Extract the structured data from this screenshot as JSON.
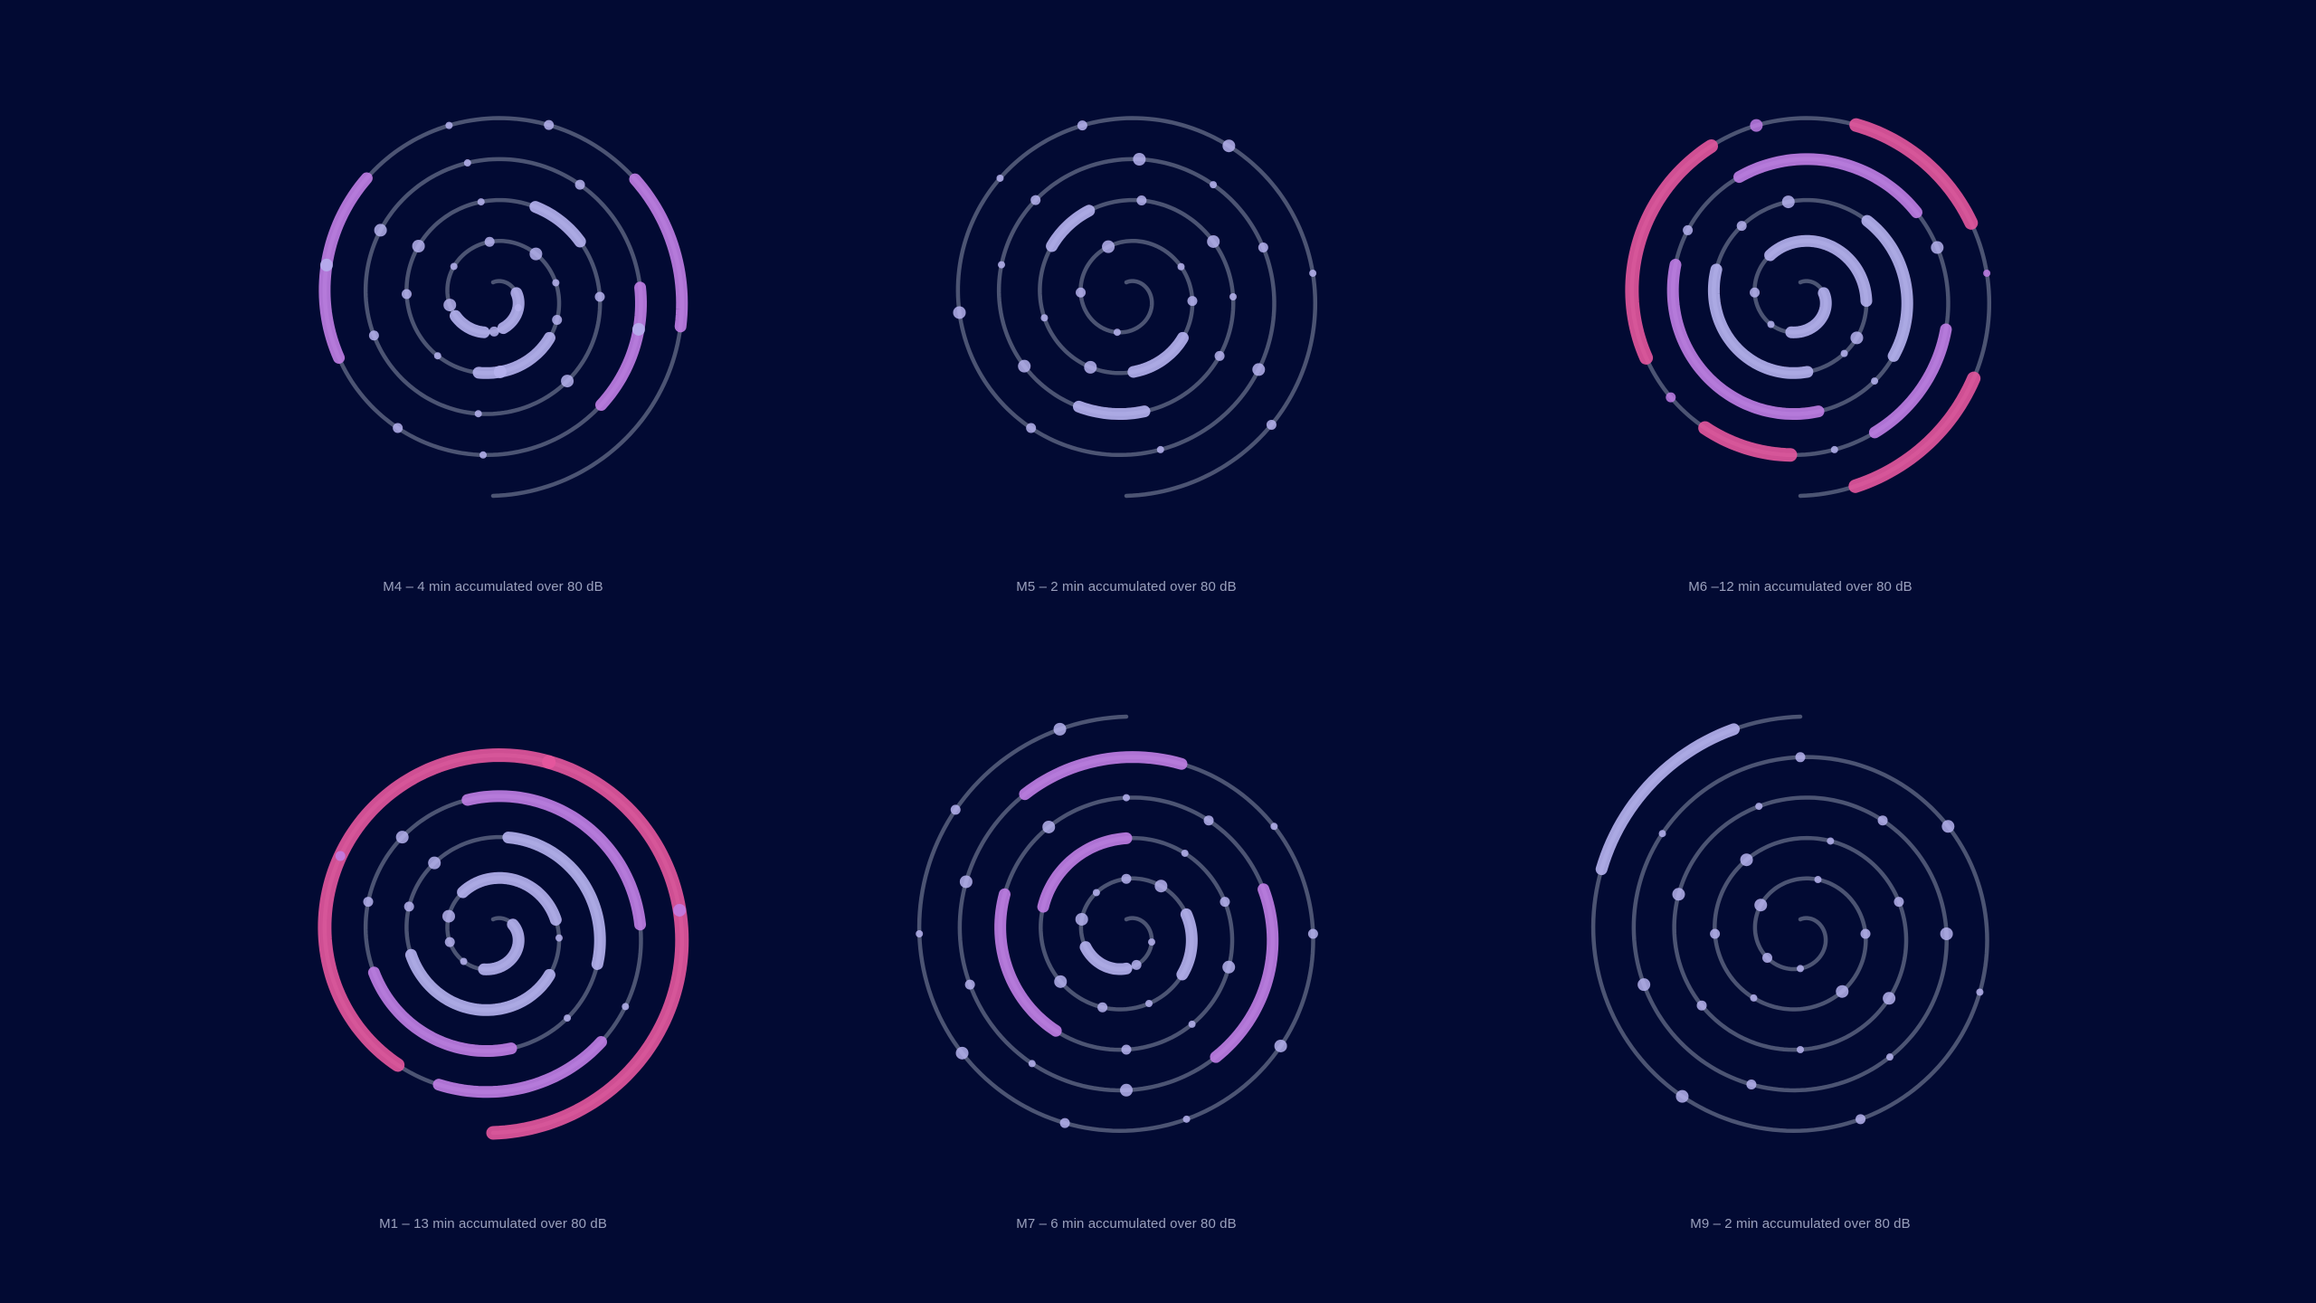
{
  "colors": {
    "background": "#020a33",
    "track": "#59627f",
    "low_level": "#b6b3ef",
    "mid_level": "#c17ee6",
    "high_level": "#e5569d",
    "caption": "#9aa0bd"
  },
  "chart_data": [
    {
      "type": "spiral",
      "caption": "M4 – 4 min accumulated over 80 dB",
      "turns": 4.5,
      "accumulated_minutes_over_80db": 4,
      "segments": [
        {
          "from": 0.05,
          "to": 0.1,
          "level": "low"
        },
        {
          "from": 0.12,
          "to": 0.15,
          "level": "low"
        },
        {
          "from": 0.3,
          "to": 0.34,
          "level": "low"
        },
        {
          "from": 0.46,
          "to": 0.48,
          "level": "low"
        },
        {
          "from": 0.72,
          "to": 0.75,
          "level": "mid"
        },
        {
          "from": 0.82,
          "to": 0.86,
          "level": "mid"
        },
        {
          "from": 0.92,
          "to": 0.95,
          "level": "mid"
        }
      ],
      "dots": [
        0.07,
        0.11,
        0.16,
        0.19,
        0.22,
        0.25,
        0.27,
        0.29,
        0.33,
        0.36,
        0.39,
        0.41,
        0.44,
        0.5,
        0.53,
        0.56,
        0.6,
        0.63,
        0.66,
        0.69,
        0.73,
        0.78,
        0.8,
        0.84,
        0.88,
        0.9
      ]
    },
    {
      "type": "spiral",
      "caption": "M5 – 2 min accumulated over 80 dB",
      "turns": 4.5,
      "accumulated_minutes_over_80db": 2,
      "segments": [
        {
          "from": 0.3,
          "to": 0.33,
          "level": "low"
        },
        {
          "from": 0.41,
          "to": 0.43,
          "level": "low"
        },
        {
          "from": 0.55,
          "to": 0.57,
          "level": "low"
        }
      ],
      "dots": [
        0.12,
        0.17,
        0.21,
        0.26,
        0.28,
        0.35,
        0.38,
        0.45,
        0.48,
        0.5,
        0.52,
        0.59,
        0.62,
        0.64,
        0.67,
        0.69,
        0.71,
        0.74,
        0.77,
        0.8,
        0.83,
        0.86,
        0.88,
        0.91,
        0.94,
        0.97
      ]
    },
    {
      "type": "spiral",
      "caption": "M6 –12 min accumulated over 80 dB",
      "turns": 4.5,
      "accumulated_minutes_over_80db": 12,
      "segments": [
        {
          "from": 0.05,
          "to": 0.12,
          "level": "low"
        },
        {
          "from": 0.2,
          "to": 0.28,
          "level": "low"
        },
        {
          "from": 0.33,
          "to": 0.4,
          "level": "low"
        },
        {
          "from": 0.47,
          "to": 0.52,
          "level": "low"
        },
        {
          "from": 0.55,
          "to": 0.62,
          "level": "mid"
        },
        {
          "from": 0.65,
          "to": 0.7,
          "level": "mid"
        },
        {
          "from": 0.73,
          "to": 0.76,
          "level": "mid"
        },
        {
          "from": 0.78,
          "to": 0.8,
          "level": "high"
        },
        {
          "from": 0.82,
          "to": 0.87,
          "level": "high"
        },
        {
          "from": 0.9,
          "to": 0.93,
          "level": "high"
        },
        {
          "from": 0.96,
          "to": 0.99,
          "level": "high"
        }
      ],
      "dots": [
        0.14,
        0.17,
        0.3,
        0.31,
        0.42,
        0.44,
        0.53,
        0.63,
        0.71,
        0.77,
        0.81,
        0.88,
        0.94
      ]
    },
    {
      "type": "spiral",
      "caption": "M1 – 13 min accumulated over 80 dB",
      "turns": 4.5,
      "accumulated_minutes_over_80db": 13,
      "segments": [
        {
          "from": 0.04,
          "to": 0.12,
          "level": "low"
        },
        {
          "from": 0.2,
          "to": 0.27,
          "level": "low"
        },
        {
          "from": 0.3,
          "to": 0.38,
          "level": "low"
        },
        {
          "from": 0.45,
          "to": 0.51,
          "level": "low"
        },
        {
          "from": 0.55,
          "to": 0.6,
          "level": "mid"
        },
        {
          "from": 0.66,
          "to": 0.72,
          "level": "mid"
        },
        {
          "from": 0.75,
          "to": 0.79,
          "level": "mid"
        },
        {
          "from": 0.8,
          "to": 0.9,
          "level": "high"
        },
        {
          "from": 0.9,
          "to": 1.0,
          "level": "high"
        }
      ],
      "dots": [
        0.14,
        0.16,
        0.18,
        0.28,
        0.4,
        0.42,
        0.53,
        0.62,
        0.64,
        0.74,
        0.85,
        0.94
      ]
    },
    {
      "type": "spiral",
      "caption": "M7 – 6 min accumulated over 80 dB",
      "turns": 5,
      "accumulated_minutes_over_80db": 6,
      "segments": [
        {
          "from": 0.1,
          "to": 0.14,
          "level": "low"
        },
        {
          "from": 0.24,
          "to": 0.27,
          "level": "low"
        },
        {
          "from": 0.36,
          "to": 0.4,
          "level": "mid"
        },
        {
          "from": 0.52,
          "to": 0.56,
          "level": "mid"
        },
        {
          "from": 0.64,
          "to": 0.68,
          "level": "mid"
        },
        {
          "from": 0.78,
          "to": 0.81,
          "level": "mid"
        }
      ],
      "dots": [
        0.06,
        0.09,
        0.16,
        0.18,
        0.2,
        0.22,
        0.29,
        0.31,
        0.33,
        0.42,
        0.44,
        0.46,
        0.48,
        0.5,
        0.58,
        0.6,
        0.62,
        0.7,
        0.72,
        0.74,
        0.76,
        0.83,
        0.85,
        0.87,
        0.89,
        0.91,
        0.93,
        0.95,
        0.97,
        0.99
      ]
    },
    {
      "type": "spiral",
      "caption": "M9 – 2 min accumulated over 80 dB",
      "turns": 5,
      "accumulated_minutes_over_80db": 2,
      "segments": [
        {
          "from": 0.96,
          "to": 0.99,
          "level": "low"
        }
      ],
      "dots": [
        0.1,
        0.13,
        0.17,
        0.21,
        0.25,
        0.28,
        0.32,
        0.35,
        0.38,
        0.41,
        0.44,
        0.47,
        0.5,
        0.53,
        0.56,
        0.59,
        0.62,
        0.65,
        0.68,
        0.71,
        0.74,
        0.77,
        0.8,
        0.83,
        0.86,
        0.89,
        0.92
      ]
    }
  ]
}
